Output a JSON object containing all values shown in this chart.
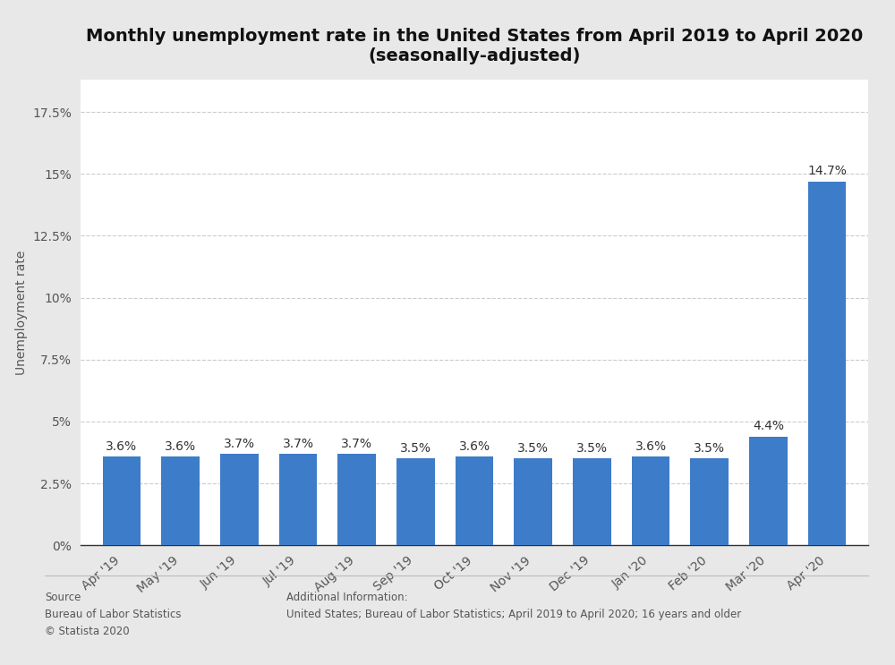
{
  "title": "Monthly unemployment rate in the United States from April 2019 to April 2020\n(seasonally-adjusted)",
  "ylabel": "Unemployment rate",
  "categories": [
    "Apr '19",
    "May '19",
    "Jun '19",
    "Jul '19",
    "Aug '19",
    "Sep '19",
    "Oct '19",
    "Nov '19",
    "Dec '19",
    "Jan '20",
    "Feb '20",
    "Mar '20",
    "Apr '20"
  ],
  "values": [
    3.6,
    3.6,
    3.7,
    3.7,
    3.7,
    3.5,
    3.6,
    3.5,
    3.5,
    3.6,
    3.5,
    4.4,
    14.7
  ],
  "labels": [
    "3.6%",
    "3.6%",
    "3.7%",
    "3.7%",
    "3.7%",
    "3.5%",
    "3.6%",
    "3.5%",
    "3.5%",
    "3.6%",
    "3.5%",
    "4.4%",
    "14.7%"
  ],
  "bar_color": "#3d7cc9",
  "figure_bg_color": "#e8e8e8",
  "axes_bg_color": "#ffffff",
  "yticks": [
    0,
    2.5,
    5.0,
    7.5,
    10.0,
    12.5,
    15.0,
    17.5
  ],
  "ytick_labels": [
    "0%",
    "2.5%",
    "5%",
    "7.5%",
    "10%",
    "12.5%",
    "15%",
    "17.5%"
  ],
  "ylim": [
    0,
    18.8
  ],
  "title_fontsize": 14,
  "axis_label_fontsize": 10,
  "tick_fontsize": 10,
  "bar_label_fontsize": 10,
  "source_text": "Source\nBureau of Labor Statistics\n© Statista 2020",
  "additional_text": "Additional Information:\nUnited States; Bureau of Labor Statistics; April 2019 to April 2020; 16 years and older",
  "grid_color": "#cccccc",
  "spine_color": "#333333",
  "text_color": "#555555",
  "label_color": "#333333"
}
